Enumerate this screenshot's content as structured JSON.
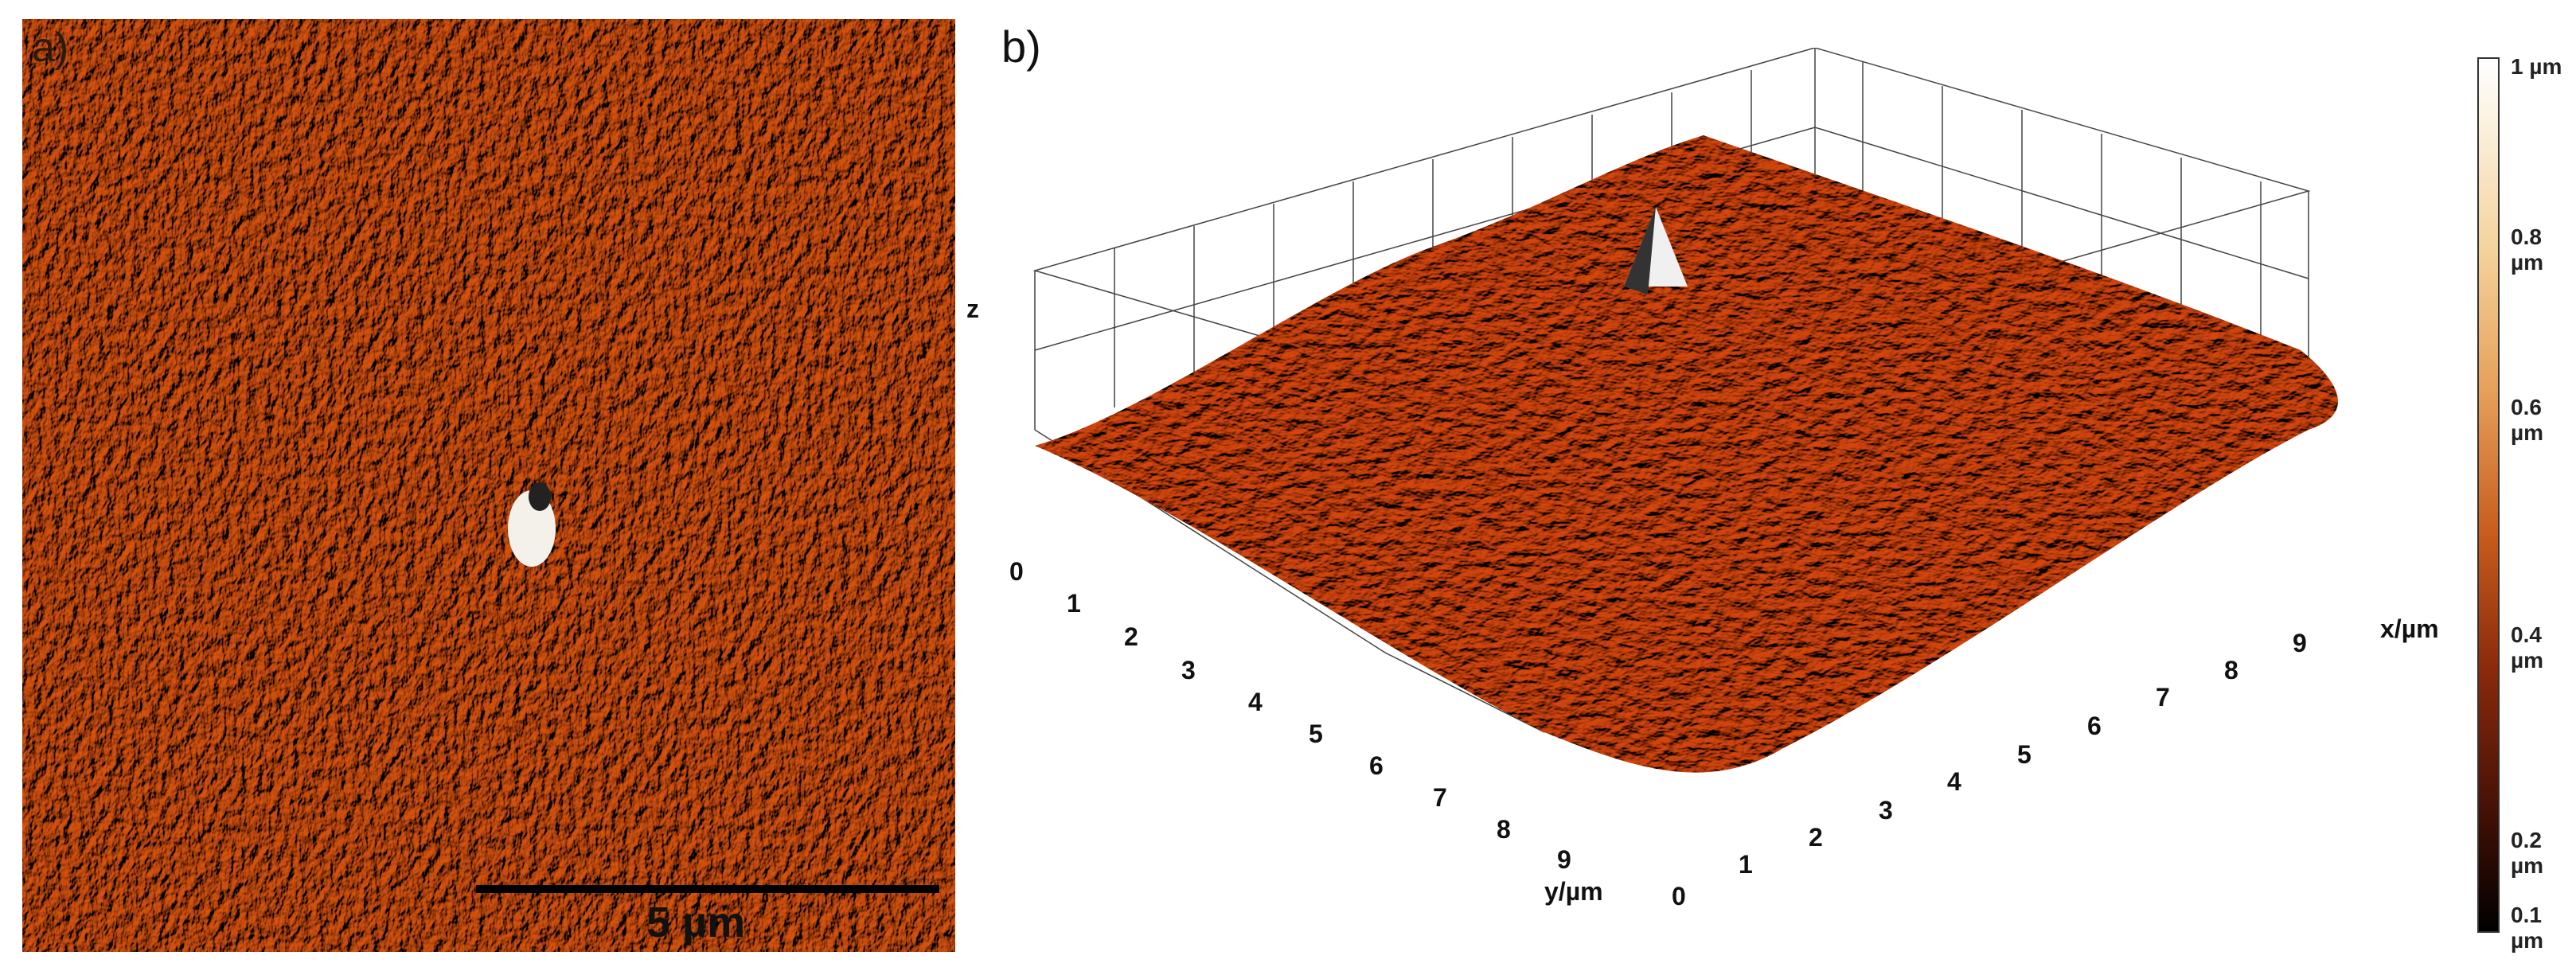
{
  "panel_a": {
    "label": "a)",
    "scale_bar": "5 µm",
    "colors": {
      "base": "#c85418",
      "light": "#f0b060",
      "dark": "#6a2408"
    }
  },
  "panel_b": {
    "label": "b)",
    "axis_labels": {
      "x": "x/µm",
      "y": "y/µm",
      "z": "z"
    },
    "x_ticks": [
      "1",
      "2",
      "3",
      "4",
      "5",
      "6",
      "7",
      "8",
      "9"
    ],
    "y_ticks": [
      "0",
      "1",
      "2",
      "3",
      "4",
      "5",
      "6",
      "7",
      "8",
      "9"
    ],
    "x_origin": "0"
  },
  "colorbar": {
    "labels": [
      "1 µm",
      "0.8 µm",
      "0.6 µm",
      "0.4 µm",
      "0.2 µm",
      "0.1 µm"
    ]
  }
}
